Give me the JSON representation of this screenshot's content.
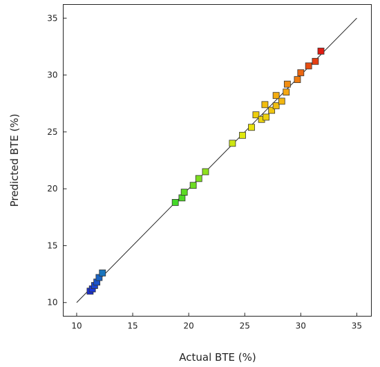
{
  "chart_data": {
    "type": "scatter",
    "xlabel": "Actual BTE (%)",
    "ylabel": "Predicted BTE (%)",
    "xlim": [
      8.8,
      36.3
    ],
    "ylim": [
      8.8,
      36.2
    ],
    "xticks": [
      10,
      15,
      20,
      25,
      30,
      35
    ],
    "yticks": [
      10,
      15,
      20,
      25,
      30,
      35
    ],
    "x_tick_labels": [
      "10",
      "15",
      "20",
      "25",
      "30",
      "35"
    ],
    "y_tick_labels": [
      "10",
      "15",
      "20",
      "25",
      "30",
      "35"
    ],
    "reference_line": {
      "from": [
        10,
        10
      ],
      "to": [
        35,
        35
      ]
    },
    "grid": false,
    "legend": "none",
    "color_scale": [
      "#1a2fd6",
      "#19c9a0",
      "#2fd62c",
      "#8fe01c",
      "#e8e80c",
      "#f5a511",
      "#e01b12"
    ],
    "points": [
      {
        "x": 11.2,
        "y": 11.0
      },
      {
        "x": 11.4,
        "y": 11.2
      },
      {
        "x": 11.6,
        "y": 11.5
      },
      {
        "x": 11.8,
        "y": 11.8
      },
      {
        "x": 12.0,
        "y": 12.2
      },
      {
        "x": 12.3,
        "y": 12.6
      },
      {
        "x": 18.8,
        "y": 18.8
      },
      {
        "x": 19.4,
        "y": 19.2
      },
      {
        "x": 19.6,
        "y": 19.7
      },
      {
        "x": 20.4,
        "y": 20.3
      },
      {
        "x": 20.9,
        "y": 20.9
      },
      {
        "x": 21.5,
        "y": 21.5
      },
      {
        "x": 23.9,
        "y": 24.0
      },
      {
        "x": 24.8,
        "y": 24.7
      },
      {
        "x": 25.6,
        "y": 25.4
      },
      {
        "x": 26.0,
        "y": 26.5
      },
      {
        "x": 26.5,
        "y": 26.1
      },
      {
        "x": 26.9,
        "y": 26.3
      },
      {
        "x": 26.8,
        "y": 27.4
      },
      {
        "x": 27.4,
        "y": 26.9
      },
      {
        "x": 27.8,
        "y": 27.3
      },
      {
        "x": 27.8,
        "y": 28.2
      },
      {
        "x": 28.3,
        "y": 27.7
      },
      {
        "x": 28.7,
        "y": 28.5
      },
      {
        "x": 28.8,
        "y": 29.2
      },
      {
        "x": 29.7,
        "y": 29.6
      },
      {
        "x": 30.0,
        "y": 30.2
      },
      {
        "x": 30.7,
        "y": 30.8
      },
      {
        "x": 31.3,
        "y": 31.2
      },
      {
        "x": 31.8,
        "y": 32.1
      }
    ]
  }
}
